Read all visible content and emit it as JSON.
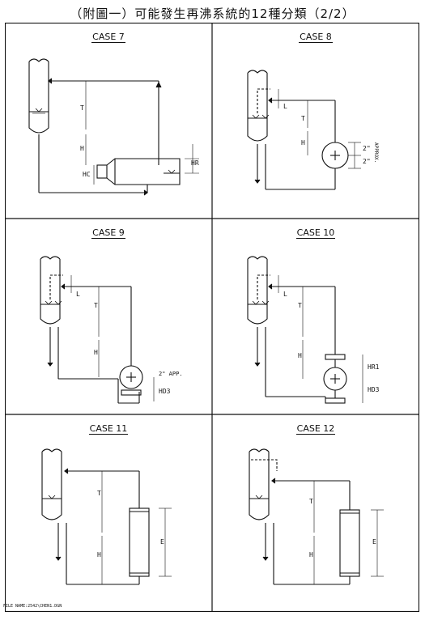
{
  "title": "（附圖一）可能發生再沸系統的12種分類（2/2）",
  "footer": "FILE NAME:2542\\CHEN1.DGN",
  "cases": [
    {
      "title": "CASE 7",
      "labels": {
        "T": "T",
        "H": "H",
        "HC": "HC",
        "HR": "HR"
      }
    },
    {
      "title": "CASE 8",
      "labels": {
        "L": "L",
        "T": "T",
        "H": "H",
        "dim1": "2\"",
        "dim2": "2\"",
        "approx": "APPROX."
      }
    },
    {
      "title": "CASE 9",
      "labels": {
        "L": "L",
        "T": "T",
        "H": "H",
        "app": "2\" APP.",
        "HD3": "HD3"
      }
    },
    {
      "title": "CASE 10",
      "labels": {
        "L": "L",
        "T": "T",
        "H": "H",
        "HR1": "HR1",
        "HD3": "HD3"
      }
    },
    {
      "title": "CASE 11",
      "labels": {
        "T": "T",
        "H": "H",
        "E": "E"
      }
    },
    {
      "title": "CASE 12",
      "labels": {
        "T": "T",
        "H": "H",
        "E": "E"
      }
    }
  ]
}
